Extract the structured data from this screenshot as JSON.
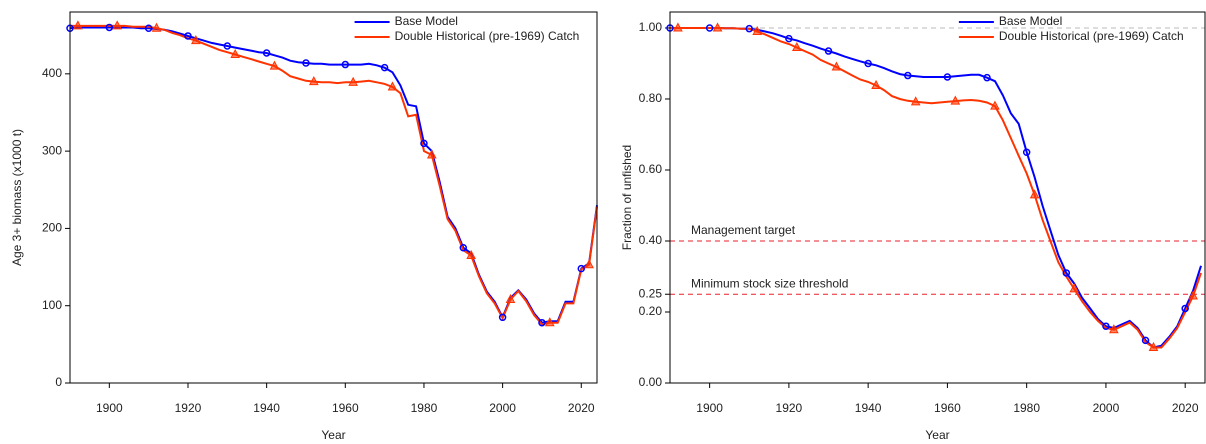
{
  "chart_data": [
    {
      "type": "line",
      "x_label": "Year",
      "y_label": "Age 3+ biomass (x1000 t)",
      "x": [
        1890,
        1892,
        1894,
        1896,
        1898,
        1900,
        1902,
        1904,
        1906,
        1908,
        1910,
        1912,
        1914,
        1916,
        1918,
        1920,
        1922,
        1924,
        1926,
        1928,
        1930,
        1932,
        1934,
        1936,
        1938,
        1940,
        1942,
        1944,
        1946,
        1948,
        1950,
        1952,
        1954,
        1956,
        1958,
        1960,
        1962,
        1964,
        1966,
        1968,
        1970,
        1972,
        1974,
        1976,
        1978,
        1980,
        1982,
        1984,
        1986,
        1988,
        1990,
        1992,
        1994,
        1996,
        1998,
        2000,
        2002,
        2004,
        2006,
        2008,
        2010,
        2012,
        2014,
        2016,
        2018,
        2020,
        2022,
        2024
      ],
      "series": [
        {
          "name": "Base Model",
          "color": "#0000ff",
          "marker": "circle",
          "values": [
            459,
            460,
            460,
            460,
            460,
            460,
            460,
            460,
            460,
            459,
            459,
            458,
            457,
            455,
            452,
            449,
            446,
            443,
            440,
            438,
            436,
            434,
            432,
            430,
            428,
            427,
            424,
            421,
            417,
            415,
            414,
            413,
            413,
            412,
            412,
            412,
            412,
            412,
            413,
            411,
            408,
            402,
            385,
            360,
            358,
            310,
            300,
            260,
            215,
            200,
            175,
            168,
            140,
            118,
            105,
            85,
            110,
            120,
            108,
            90,
            78,
            80,
            80,
            105,
            105,
            148,
            155,
            230
          ]
        },
        {
          "name": "Double Historical (pre-1969) Catch",
          "color": "#ff3300",
          "marker": "triangle",
          "values": [
            462,
            462,
            462,
            462,
            462,
            462,
            462,
            462,
            461,
            461,
            461,
            459,
            457,
            453,
            450,
            446,
            443,
            439,
            435,
            431,
            428,
            425,
            422,
            419,
            416,
            413,
            410,
            404,
            397,
            394,
            391,
            390,
            389,
            389,
            388,
            389,
            389,
            390,
            391,
            389,
            387,
            383,
            375,
            345,
            347,
            300,
            295,
            255,
            212,
            197,
            172,
            165,
            138,
            116,
            103,
            84,
            108,
            119,
            106,
            88,
            76,
            78,
            78,
            103,
            103,
            147,
            153,
            228
          ]
        }
      ],
      "xlim": [
        1890,
        2024
      ],
      "xticks": [
        1900,
        1920,
        1940,
        1960,
        1980,
        2000,
        2020
      ],
      "ylim": [
        0,
        480
      ],
      "yticks": [
        0,
        100,
        200,
        300,
        400
      ],
      "legend": "top-right"
    },
    {
      "type": "line",
      "x_label": "Year",
      "y_label": "Fraction of unfished",
      "x": [
        1890,
        1892,
        1894,
        1896,
        1898,
        1900,
        1902,
        1904,
        1906,
        1908,
        1910,
        1912,
        1914,
        1916,
        1918,
        1920,
        1922,
        1924,
        1926,
        1928,
        1930,
        1932,
        1934,
        1936,
        1938,
        1940,
        1942,
        1944,
        1946,
        1948,
        1950,
        1952,
        1954,
        1956,
        1958,
        1960,
        1962,
        1964,
        1966,
        1968,
        1970,
        1972,
        1974,
        1976,
        1978,
        1980,
        1982,
        1984,
        1986,
        1988,
        1990,
        1992,
        1994,
        1996,
        1998,
        2000,
        2002,
        2004,
        2006,
        2008,
        2010,
        2012,
        2014,
        2016,
        2018,
        2020,
        2022,
        2024
      ],
      "series": [
        {
          "name": "Base Model",
          "color": "#0000ff",
          "marker": "circle",
          "values": [
            1.0,
            1.0,
            1.0,
            1.0,
            1.0,
            1.0,
            1.0,
            0.999,
            0.999,
            0.998,
            0.998,
            0.995,
            0.99,
            0.985,
            0.978,
            0.97,
            0.965,
            0.957,
            0.95,
            0.942,
            0.935,
            0.928,
            0.92,
            0.913,
            0.906,
            0.9,
            0.895,
            0.887,
            0.878,
            0.87,
            0.866,
            0.864,
            0.862,
            0.862,
            0.862,
            0.862,
            0.864,
            0.866,
            0.868,
            0.868,
            0.86,
            0.85,
            0.81,
            0.76,
            0.73,
            0.65,
            0.58,
            0.5,
            0.43,
            0.36,
            0.31,
            0.28,
            0.24,
            0.21,
            0.18,
            0.16,
            0.155,
            0.165,
            0.175,
            0.155,
            0.12,
            0.1,
            0.105,
            0.13,
            0.16,
            0.21,
            0.26,
            0.33
          ]
        },
        {
          "name": "Double Historical (pre-1969) Catch",
          "color": "#ff3300",
          "marker": "triangle",
          "values": [
            1.0,
            1.0,
            1.0,
            1.0,
            1.0,
            1.0,
            1.0,
            0.999,
            0.999,
            0.998,
            0.998,
            0.99,
            0.982,
            0.972,
            0.962,
            0.955,
            0.945,
            0.935,
            0.925,
            0.91,
            0.9,
            0.89,
            0.878,
            0.866,
            0.855,
            0.848,
            0.838,
            0.825,
            0.808,
            0.8,
            0.795,
            0.792,
            0.79,
            0.788,
            0.79,
            0.792,
            0.794,
            0.796,
            0.797,
            0.795,
            0.79,
            0.78,
            0.74,
            0.69,
            0.64,
            0.59,
            0.53,
            0.46,
            0.4,
            0.34,
            0.3,
            0.265,
            0.23,
            0.2,
            0.175,
            0.155,
            0.15,
            0.16,
            0.17,
            0.15,
            0.115,
            0.1,
            0.1,
            0.125,
            0.155,
            0.2,
            0.245,
            0.31
          ]
        }
      ],
      "xlim": [
        1890,
        2025
      ],
      "xticks": [
        1900,
        1920,
        1940,
        1960,
        1980,
        2000,
        2020
      ],
      "ylim": [
        0,
        1.045
      ],
      "yticks": [
        {
          "value": 0,
          "label": "0.00"
        },
        {
          "value": 0.2,
          "label": "0.20"
        },
        {
          "value": 0.25,
          "label": "0.25"
        },
        {
          "value": 0.4,
          "label": "0.40"
        },
        {
          "value": 0.6,
          "label": "0.60"
        },
        {
          "value": 0.8,
          "label": "0.80"
        },
        {
          "value": 1,
          "label": "1.00"
        }
      ],
      "reference_line": 1,
      "hlines": [
        {
          "value": 0.4,
          "label": "Management target"
        },
        {
          "value": 0.25,
          "label": "Minimum stock size threshold"
        }
      ],
      "legend": "top-right"
    }
  ]
}
